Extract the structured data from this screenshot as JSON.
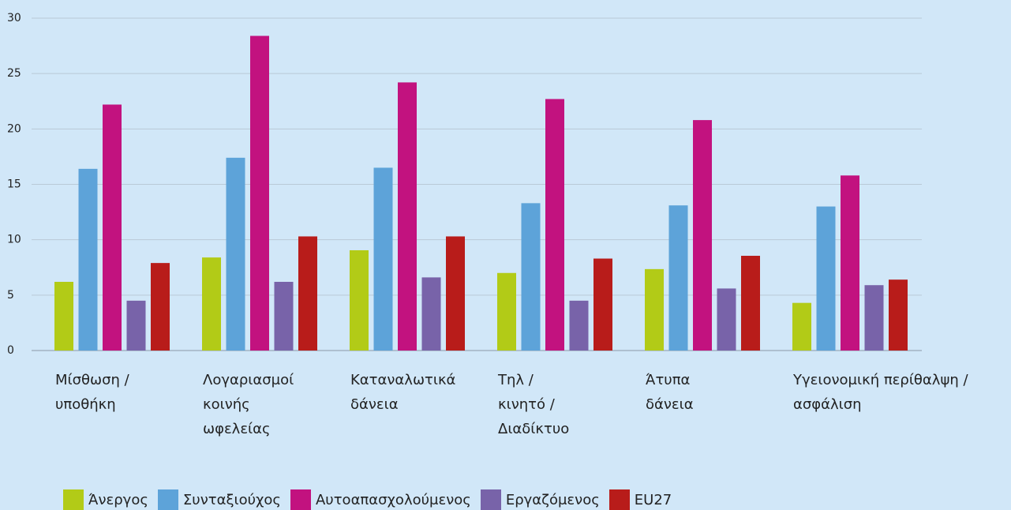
{
  "chart_data": {
    "type": "bar",
    "categories": [
      "Μίσθωση /\nυποθήκη",
      "Λογαριασμοί\nκοινής\nωφελείας",
      "Καταναλωτικά\nδάνεια",
      "Τηλ /\nκινητό /\nΔιαδίκτυο",
      "Άτυπα\nδάνεια",
      "Υγειονομική περίθαλψη /\nασφάλιση"
    ],
    "series": [
      {
        "name": "Άνεργος",
        "color": "#b2cb17",
        "values": [
          6.2,
          8.4,
          9.05,
          7.0,
          7.35,
          4.3
        ]
      },
      {
        "name": "Συνταξιούχος",
        "color": "#5da3d9",
        "values": [
          16.4,
          17.4,
          16.5,
          13.3,
          13.1,
          13.0
        ]
      },
      {
        "name": "Αυτοαπασχολούμενος",
        "color": "#c2127f",
        "values": [
          22.2,
          28.4,
          24.2,
          22.7,
          20.8,
          15.8
        ]
      },
      {
        "name": "Εργαζόμενος",
        "color": "#7863a9",
        "values": [
          4.5,
          6.2,
          6.6,
          4.5,
          5.6,
          5.9
        ]
      },
      {
        "name": "EU27",
        "color": "#b81c1a",
        "values": [
          7.9,
          10.3,
          10.3,
          8.3,
          8.55,
          6.4
        ]
      }
    ],
    "ylim": [
      0,
      30
    ],
    "yticks": [
      0,
      5,
      10,
      15,
      20,
      25,
      30
    ],
    "grid": true
  }
}
